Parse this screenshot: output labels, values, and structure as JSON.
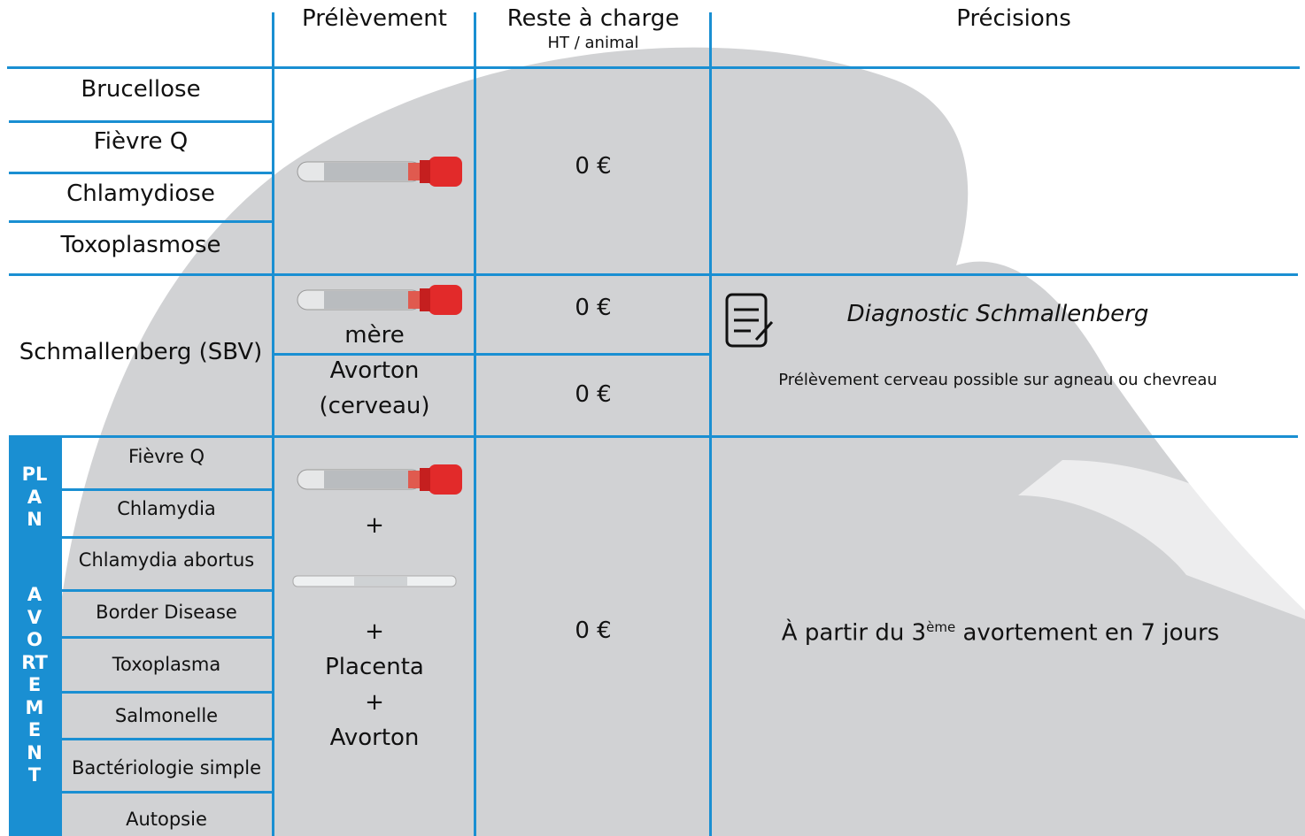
{
  "header": {
    "prelevement": "Prélèvement",
    "reste": "Reste à charge",
    "reste_sub": "HT / animal",
    "precisions": "Précisions"
  },
  "group1": {
    "diseases": [
      "Brucellose",
      "Fièvre Q",
      "Chlamydiose",
      "Toxoplasmose"
    ],
    "cost": "0 €"
  },
  "sbv": {
    "disease": "Schmallenberg (SBV)",
    "sample1": "mère",
    "sample2": [
      "Avorton",
      "(cerveau)"
    ],
    "cost1": "0 €",
    "cost2": "0 €",
    "note_title": "Diagnostic Schmallenberg",
    "note": "Prélèvement cerveau possible sur agneau ou chevreau"
  },
  "plan": {
    "label": [
      "PLAN",
      "AVORTEMENT"
    ],
    "tests": [
      "Fièvre Q",
      "Chlamydia",
      "Chlamydia abortus",
      "Border Disease",
      "Toxoplasma",
      "Salmonelle",
      "Bactériologie simple",
      "Autopsie"
    ],
    "samples": [
      "+",
      "+",
      "Placenta",
      "+",
      "Avorton"
    ],
    "cost": "0 €",
    "note_prefix": "À partir du 3",
    "note_sup": "ème",
    "note_suffix": " avortement en 7 jours"
  }
}
